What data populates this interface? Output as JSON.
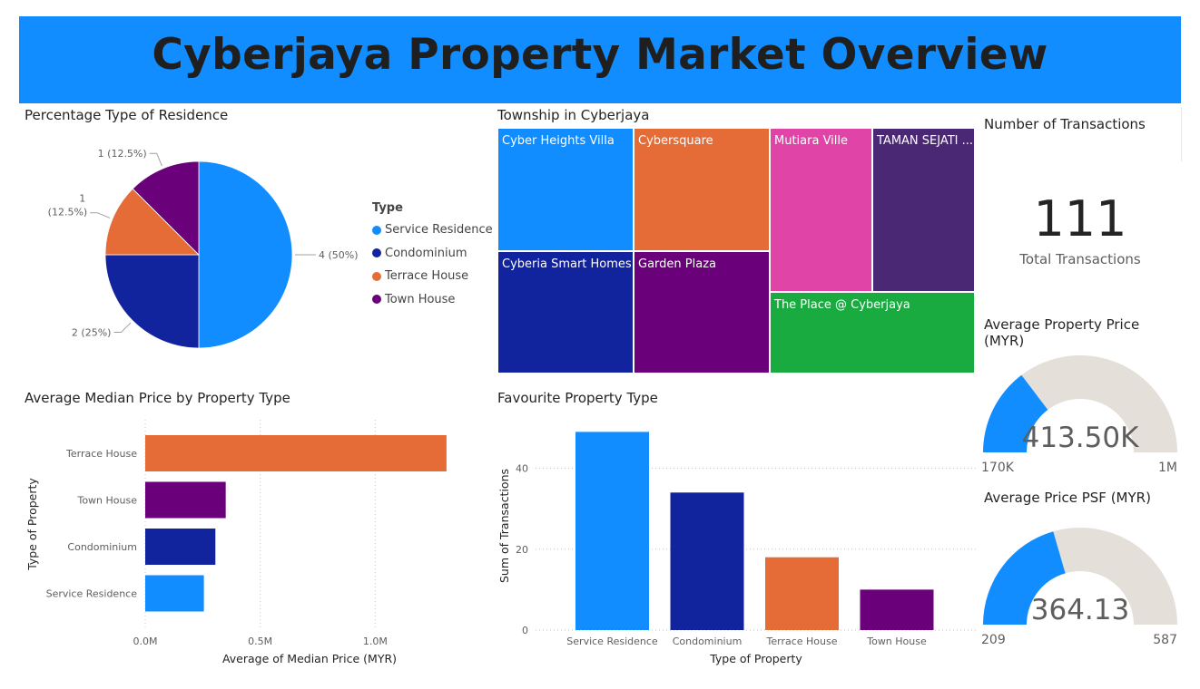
{
  "header": {
    "title": "Cyberjaya Property Market Overview"
  },
  "colors": {
    "service_residence": "#118dff",
    "condominium": "#12239e",
    "terrace_house": "#e66c37",
    "town_house": "#6b007b",
    "magenta": "#e044a7",
    "purple": "#4b2874",
    "green": "#1aab40",
    "gauge_track": "#e4dfd9"
  },
  "chart_data": [
    {
      "type": "pie",
      "title": "Percentage Type of Residence",
      "legend_title": "Type",
      "legend_position": "right",
      "slices": [
        {
          "name": "Service Residence",
          "value": 4,
          "label": "4 (50%)",
          "color": "#118dff"
        },
        {
          "name": "Condominium",
          "value": 2,
          "label": "2 (25%)",
          "color": "#12239e"
        },
        {
          "name": "Terrace House",
          "value": 1,
          "label_line1": "1",
          "label_line2": "(12.5%)",
          "color": "#e66c37"
        },
        {
          "name": "Town House",
          "value": 1,
          "label": "1 (12.5%)",
          "color": "#6b007b"
        }
      ]
    },
    {
      "type": "treemap",
      "title": "Township in Cyberjaya",
      "items": [
        {
          "name": "Cyber Heights Villa",
          "color": "#118dff"
        },
        {
          "name": "Cybersquare",
          "color": "#e66c37"
        },
        {
          "name": "Mutiara Ville",
          "color": "#e044a7"
        },
        {
          "name": "TAMAN SEJATI ...",
          "color": "#4b2874"
        },
        {
          "name": "Cyberia Smart Homes",
          "color": "#12239e"
        },
        {
          "name": "Garden Plaza",
          "color": "#6b007b"
        },
        {
          "name": "The Place @ Cyberjaya",
          "color": "#1aab40"
        }
      ]
    },
    {
      "type": "bar",
      "orientation": "horizontal",
      "title": "Average Median Price by Property Type",
      "xlabel": "Average of Median Price (MYR)",
      "ylabel": "Type of Property",
      "xlim": [
        0,
        1350000
      ],
      "xticks": [
        0,
        500000,
        1000000
      ],
      "xtick_labels": [
        "0.0M",
        "0.5M",
        "1.0M"
      ],
      "grid": true,
      "categories": [
        "Terrace House",
        "Town House",
        "Condominium",
        "Service Residence"
      ],
      "values": [
        1310000,
        350000,
        305000,
        255000
      ],
      "colors": [
        "#e66c37",
        "#6b007b",
        "#12239e",
        "#118dff"
      ]
    },
    {
      "type": "bar",
      "orientation": "vertical",
      "title": "Favourite Property Type",
      "xlabel": "Type of Property",
      "ylabel": "Sum of Transactions",
      "ylim": [
        0,
        52
      ],
      "yticks": [
        0,
        20,
        40
      ],
      "grid": true,
      "categories": [
        "Service Residence",
        "Condominium",
        "Terrace House",
        "Town House"
      ],
      "values": [
        49,
        34,
        18,
        10
      ],
      "colors": [
        "#118dff",
        "#12239e",
        "#e66c37",
        "#6b007b"
      ]
    }
  ],
  "kpis": {
    "transactions": {
      "title": "Number of Transactions",
      "value": "111",
      "label": "Total Transactions"
    },
    "avg_price": {
      "title_line1": "Average Property Price",
      "title_line2": "(MYR)",
      "value_text": "413.50K",
      "value": 413500,
      "min": 170000,
      "max": 1000000,
      "min_label": "170K",
      "max_label": "1M"
    },
    "avg_psf": {
      "title": "Average Price PSF (MYR)",
      "value_text": "364.13",
      "value": 364.13,
      "min": 209,
      "max": 587,
      "min_label": "209",
      "max_label": "587"
    }
  }
}
